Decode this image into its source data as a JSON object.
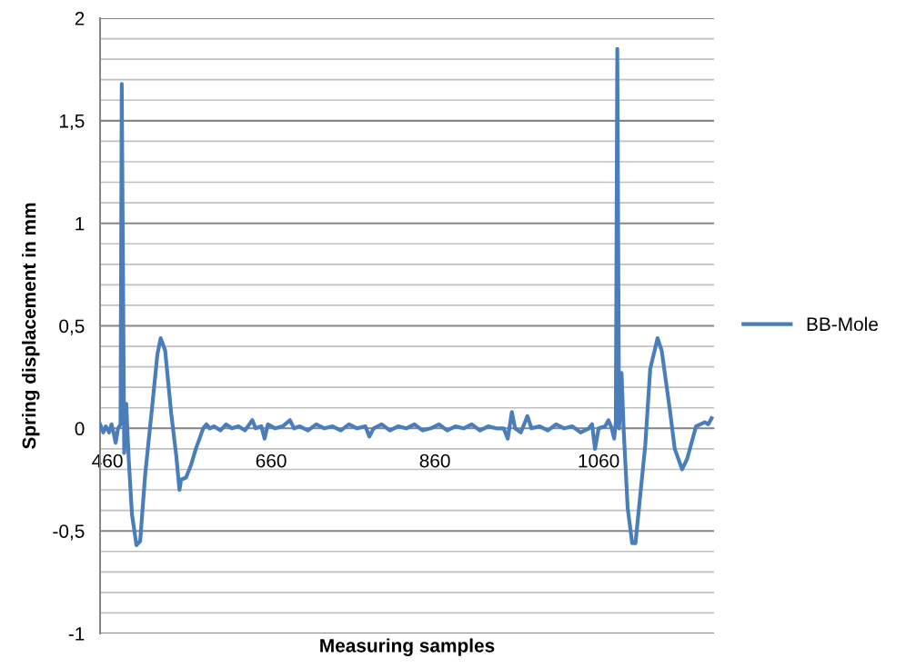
{
  "chart_data": {
    "type": "line",
    "xlabel": "Measuring samples",
    "ylabel": "Spring displacement in mm",
    "xlim": [
      451,
      1201
    ],
    "xticks": [
      460,
      660,
      860,
      1060
    ],
    "ylim": [
      -1,
      2
    ],
    "yticks": [
      {
        "value": -1,
        "label": "-1"
      },
      {
        "value": -0.9,
        "label": null
      },
      {
        "value": -0.8,
        "label": null
      },
      {
        "value": -0.7,
        "label": null
      },
      {
        "value": -0.6,
        "label": null
      },
      {
        "value": -0.5,
        "label": "-0,5"
      },
      {
        "value": -0.4,
        "label": null
      },
      {
        "value": -0.3,
        "label": null
      },
      {
        "value": -0.2,
        "label": null
      },
      {
        "value": -0.1,
        "label": null
      },
      {
        "value": 0,
        "label": "0"
      },
      {
        "value": 0.1,
        "label": null
      },
      {
        "value": 0.2,
        "label": null
      },
      {
        "value": 0.3,
        "label": null
      },
      {
        "value": 0.4,
        "label": null
      },
      {
        "value": 0.5,
        "label": "0,5"
      },
      {
        "value": 0.6,
        "label": null
      },
      {
        "value": 0.7,
        "label": null
      },
      {
        "value": 0.8,
        "label": null
      },
      {
        "value": 0.9,
        "label": null
      },
      {
        "value": 1,
        "label": "1"
      },
      {
        "value": 1.1,
        "label": null
      },
      {
        "value": 1.2,
        "label": null
      },
      {
        "value": 1.3,
        "label": null
      },
      {
        "value": 1.4,
        "label": null
      },
      {
        "value": 1.5,
        "label": "1,5"
      },
      {
        "value": 1.6,
        "label": null
      },
      {
        "value": 1.7,
        "label": null
      },
      {
        "value": 1.8,
        "label": null
      },
      {
        "value": 1.9,
        "label": null
      },
      {
        "value": 2,
        "label": "2"
      }
    ],
    "grid": "y",
    "legend": "right",
    "marker": "none",
    "line_style": "solid",
    "series": [
      {
        "name": "BB-Mole",
        "color": "#4a7ebb",
        "x": [
          451,
          455,
          458,
          462,
          465,
          468,
          470,
          473,
          476,
          477.5,
          480.5,
          483,
          486,
          490,
          495.5,
          500,
          506,
          515,
          521,
          525,
          530.5,
          538,
          544,
          548,
          550,
          556,
          562,
          568,
          577,
          581,
          585,
          590,
          598,
          605,
          612,
          620,
          628,
          637,
          641,
          648,
          652,
          656,
          665,
          674,
          683,
          688,
          695,
          705,
          715,
          725,
          735,
          745,
          755,
          765,
          775,
          780,
          785,
          795,
          805,
          815,
          825,
          835,
          845,
          855,
          865,
          875,
          885,
          895,
          905,
          915,
          925,
          935,
          944,
          949,
          954,
          958,
          965,
          973,
          978,
          988,
          998,
          1008,
          1018,
          1028,
          1038,
          1048,
          1052,
          1055.6,
          1060,
          1068,
          1072,
          1076,
          1079,
          1081,
          1082.8,
          1085,
          1088,
          1090.5,
          1095.5,
          1101,
          1105,
          1110.5,
          1117,
          1123,
          1132,
          1137,
          1147,
          1153,
          1162,
          1168,
          1179,
          1189.6,
          1194,
          1198
        ],
        "values": [
          0.02,
          -0.02,
          0.01,
          -0.02,
          0.02,
          -0.03,
          -0.07,
          0.0,
          0.02,
          1.68,
          -0.12,
          0.12,
          -0.15,
          -0.42,
          -0.57,
          -0.55,
          -0.23,
          0.12,
          0.36,
          0.44,
          0.38,
          0.07,
          -0.13,
          -0.3,
          -0.25,
          -0.24,
          -0.18,
          -0.1,
          0.0,
          0.02,
          0.0,
          0.01,
          -0.01,
          0.02,
          0.0,
          0.01,
          -0.01,
          0.04,
          0.0,
          0.01,
          -0.05,
          0.02,
          0.0,
          0.01,
          0.04,
          0.0,
          0.01,
          -0.01,
          0.02,
          0.0,
          0.01,
          -0.01,
          0.02,
          0.0,
          0.01,
          -0.04,
          0.0,
          0.02,
          -0.01,
          0.01,
          0.0,
          0.02,
          -0.01,
          0.0,
          0.02,
          -0.01,
          0.01,
          0.0,
          0.02,
          -0.01,
          0.01,
          0.0,
          0.0,
          -0.05,
          0.08,
          0.0,
          -0.02,
          0.06,
          0.0,
          0.01,
          -0.01,
          0.02,
          0.0,
          0.01,
          -0.02,
          0.0,
          0.02,
          -0.1,
          0.0,
          0.01,
          0.04,
          0.0,
          -0.05,
          0.03,
          1.85,
          0.0,
          0.27,
          0.0,
          -0.39,
          -0.56,
          -0.56,
          -0.34,
          -0.08,
          0.29,
          0.44,
          0.38,
          0.09,
          -0.1,
          -0.2,
          -0.15,
          0.01,
          0.03,
          0.02,
          0.05
        ]
      }
    ]
  }
}
